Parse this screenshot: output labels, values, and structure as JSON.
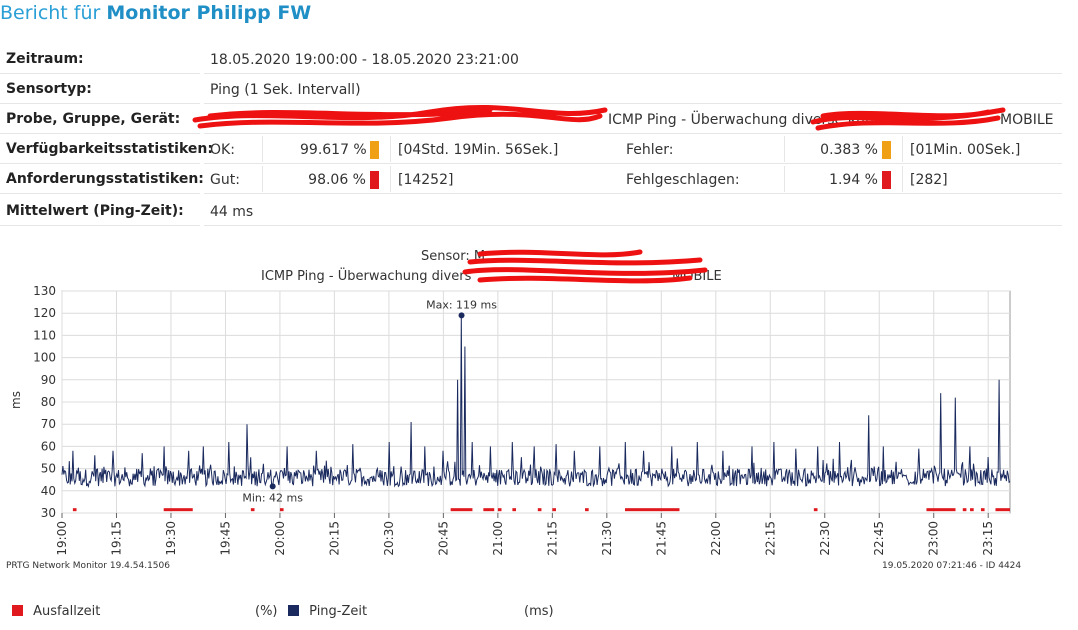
{
  "header": {
    "prefix": "Bericht für",
    "name": "Monitor Philipp FW"
  },
  "info": {
    "period_label": "Zeitraum:",
    "period_value": "18.05.2020 19:00:00 - 18.05.2020 23:21:00",
    "sensortype_label": "Sensortyp:",
    "sensortype_value": "Ping (1 Sek. Intervall)",
    "probe_label": "Probe, Gruppe, Gerät:",
    "probe_value": "ICMP Ping - Überwachung diverse Kunden",
    "probe_suffix": "MOBILE",
    "avail_label": "Verfügbarkeitsstatistiken:",
    "avail_ok_label": "OK:",
    "avail_ok_pct": "99.617 %",
    "avail_ok_time": "[04Std. 19Min. 56Sek.]",
    "avail_err_label": "Fehler:",
    "avail_err_pct": "0.383 %",
    "avail_err_time": "[01Min. 00Sek.]",
    "req_label": "Anforderungsstatistiken:",
    "req_good_label": "Gut:",
    "req_good_pct": "98.06 %",
    "req_good_count": "[14252]",
    "req_fail_label": "Fehlgeschlagen:",
    "req_fail_pct": "1.94 %",
    "req_fail_count": "[282]",
    "mean_label": "Mittelwert (Ping-Zeit):",
    "mean_value": "44 ms"
  },
  "colors": {
    "accent": "#2a9fd6",
    "ok": "#f0a014",
    "error": "#e0191f",
    "series": "#1a2a5e",
    "redaction": "#ee1111"
  },
  "chart_title": {
    "line1": "Sensor: M",
    "line2a": "ICMP Ping - Überwachung divers",
    "line2b": "MOBILE"
  },
  "chart_data": {
    "type": "line",
    "ylabel": "ms",
    "ylim": [
      30,
      130
    ],
    "yticks": [
      30,
      40,
      50,
      60,
      70,
      80,
      90,
      100,
      110,
      120,
      130
    ],
    "xticks": [
      "19:00",
      "19:15",
      "19:30",
      "19:45",
      "20:00",
      "20:15",
      "20:30",
      "20:45",
      "21:00",
      "21:15",
      "21:30",
      "21:45",
      "22:00",
      "22:15",
      "22:30",
      "22:45",
      "23:00",
      "23:15"
    ],
    "xrange_minutes": [
      0,
      261
    ],
    "grid": true,
    "annotations": {
      "max": {
        "label": "Max: 119 ms",
        "minute": 110,
        "value": 119
      },
      "min": {
        "label": "Min: 42 ms",
        "minute": 58,
        "value": 42
      }
    },
    "baseline_ms": 46,
    "spikes": [
      [
        3,
        58
      ],
      [
        9,
        56
      ],
      [
        14,
        58
      ],
      [
        22,
        57
      ],
      [
        28,
        60
      ],
      [
        35,
        58
      ],
      [
        39,
        60
      ],
      [
        46,
        62
      ],
      [
        51,
        70
      ],
      [
        62,
        60
      ],
      [
        70,
        58
      ],
      [
        80,
        61
      ],
      [
        90,
        62
      ],
      [
        96,
        71
      ],
      [
        100,
        60
      ],
      [
        105,
        58
      ],
      [
        109,
        90
      ],
      [
        110,
        119
      ],
      [
        111,
        105
      ],
      [
        113,
        62
      ],
      [
        118,
        60
      ],
      [
        124,
        62
      ],
      [
        130,
        60
      ],
      [
        136,
        61
      ],
      [
        141,
        58
      ],
      [
        148,
        60
      ],
      [
        155,
        62
      ],
      [
        160,
        58
      ],
      [
        168,
        60
      ],
      [
        175,
        62
      ],
      [
        182,
        58
      ],
      [
        190,
        60
      ],
      [
        196,
        62
      ],
      [
        202,
        59
      ],
      [
        208,
        60
      ],
      [
        214,
        62
      ],
      [
        222,
        74
      ],
      [
        226,
        60
      ],
      [
        236,
        59
      ],
      [
        242,
        84
      ],
      [
        246,
        82
      ],
      [
        250,
        60
      ],
      [
        258,
        90
      ]
    ],
    "outages": [
      [
        3,
        4
      ],
      [
        28,
        36
      ],
      [
        52,
        53
      ],
      [
        60,
        61
      ],
      [
        107,
        113
      ],
      [
        116,
        119
      ],
      [
        120,
        121
      ],
      [
        124,
        125
      ],
      [
        131,
        132
      ],
      [
        135,
        136
      ],
      [
        144,
        145
      ],
      [
        155,
        170
      ],
      [
        207,
        208
      ],
      [
        238,
        246
      ],
      [
        248,
        249
      ],
      [
        250,
        251
      ],
      [
        253,
        254
      ],
      [
        257,
        261
      ]
    ],
    "series": [
      {
        "name": "Ausfallzeit",
        "unit": "(%)"
      },
      {
        "name": "Ping-Zeit",
        "unit": "(ms)"
      }
    ]
  },
  "footer": {
    "left": "PRTG Network Monitor 19.4.54.1506",
    "right": "19.05.2020 07:21:46 - ID 4424"
  }
}
